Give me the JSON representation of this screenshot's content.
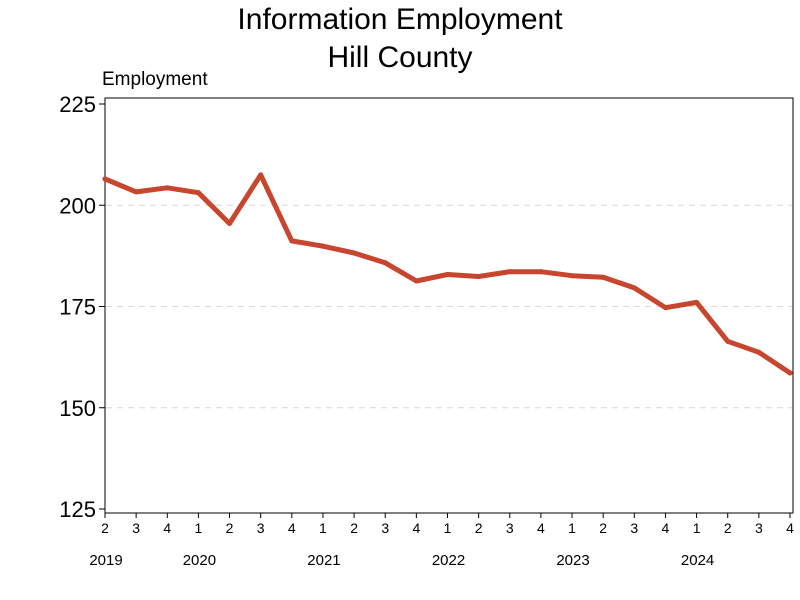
{
  "chart_data": {
    "type": "line",
    "title": [
      "Information Employment",
      "Hill County"
    ],
    "ylabel": "Employment",
    "xlabel": "",
    "ylim": [
      125,
      225
    ],
    "yticks": [
      125,
      150,
      175,
      200,
      225
    ],
    "grid": "horizontal-dashed",
    "x": [
      "2019 Q2",
      "2019 Q3",
      "2019 Q4",
      "2020 Q1",
      "2020 Q2",
      "2020 Q3",
      "2020 Q4",
      "2021 Q1",
      "2021 Q2",
      "2021 Q3",
      "2021 Q4",
      "2022 Q1",
      "2022 Q2",
      "2022 Q3",
      "2022 Q4",
      "2023 Q1",
      "2023 Q2",
      "2023 Q3",
      "2023 Q4",
      "2024 Q1",
      "2024 Q2",
      "2024 Q3",
      "2024 Q4"
    ],
    "quarter_tick_labels": [
      "2",
      "3",
      "4",
      "1",
      "2",
      "3",
      "4",
      "1",
      "2",
      "3",
      "4",
      "1",
      "2",
      "3",
      "4",
      "1",
      "2",
      "3",
      "4",
      "1",
      "2",
      "3",
      "4"
    ],
    "year_labels": [
      {
        "label": "2019",
        "index": 0
      },
      {
        "label": "2020",
        "index": 3
      },
      {
        "label": "2021",
        "index": 7
      },
      {
        "label": "2022",
        "index": 11
      },
      {
        "label": "2023",
        "index": 15
      },
      {
        "label": "2024",
        "index": 19
      }
    ],
    "series": [
      {
        "values": [
          206.5,
          203.3,
          204.3,
          203.1,
          195.5,
          207.5,
          191.2,
          189.9,
          188.2,
          185.8,
          181.3,
          182.9,
          182.4,
          183.6,
          183.6,
          182.6,
          182.2,
          179.6,
          174.7,
          176.0,
          166.4,
          163.7,
          158.6
        ],
        "color": "#c8452e"
      }
    ]
  }
}
